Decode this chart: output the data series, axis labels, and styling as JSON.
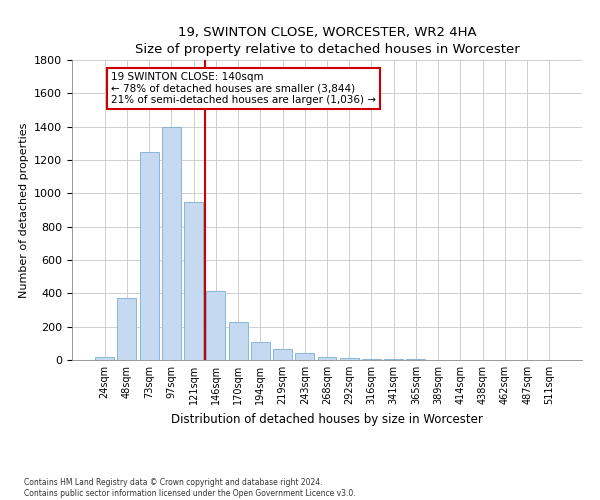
{
  "title": "19, SWINTON CLOSE, WORCESTER, WR2 4HA",
  "subtitle": "Size of property relative to detached houses in Worcester",
  "xlabel": "Distribution of detached houses by size in Worcester",
  "ylabel": "Number of detached properties",
  "footnote1": "Contains HM Land Registry data © Crown copyright and database right 2024.",
  "footnote2": "Contains public sector information licensed under the Open Government Licence v3.0.",
  "annotation_line1": "19 SWINTON CLOSE: 140sqm",
  "annotation_line2": "← 78% of detached houses are smaller (3,844)",
  "annotation_line3": "21% of semi-detached houses are larger (1,036) →",
  "bar_color": "#c5d9f0",
  "bar_edge_color": "#7bafd4",
  "vline_color": "#cc0000",
  "vline_x": 4.5,
  "categories": [
    "24sqm",
    "48sqm",
    "73sqm",
    "97sqm",
    "121sqm",
    "146sqm",
    "170sqm",
    "194sqm",
    "219sqm",
    "243sqm",
    "268sqm",
    "292sqm",
    "316sqm",
    "341sqm",
    "365sqm",
    "389sqm",
    "414sqm",
    "438sqm",
    "462sqm",
    "487sqm",
    "511sqm"
  ],
  "values": [
    20,
    375,
    1250,
    1400,
    950,
    415,
    230,
    110,
    65,
    40,
    18,
    10,
    8,
    6,
    4,
    3,
    2,
    2,
    1,
    1,
    1
  ],
  "ylim": [
    0,
    1800
  ],
  "yticks": [
    0,
    200,
    400,
    600,
    800,
    1000,
    1200,
    1400,
    1600,
    1800
  ],
  "background_color": "#ffffff",
  "grid_color": "#c8c8c8"
}
